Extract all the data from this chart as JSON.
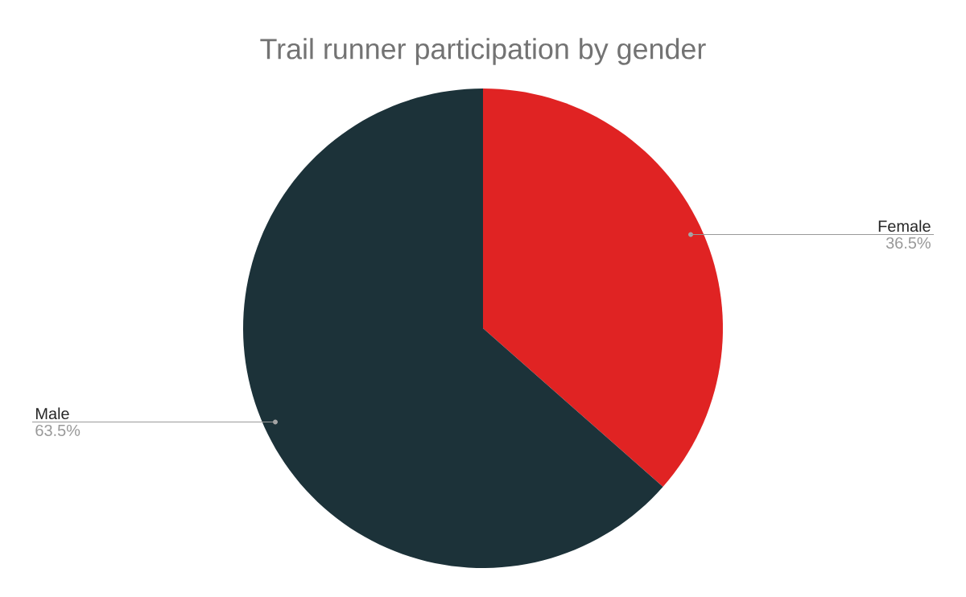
{
  "chart_data": {
    "type": "pie",
    "title": "Trail runner participation by gender",
    "categories": [
      "Female",
      "Male"
    ],
    "values": [
      36.5,
      63.5
    ],
    "value_labels": [
      "36.5%",
      "63.5%"
    ],
    "colors": [
      "#e02323",
      "#1c3239"
    ]
  }
}
